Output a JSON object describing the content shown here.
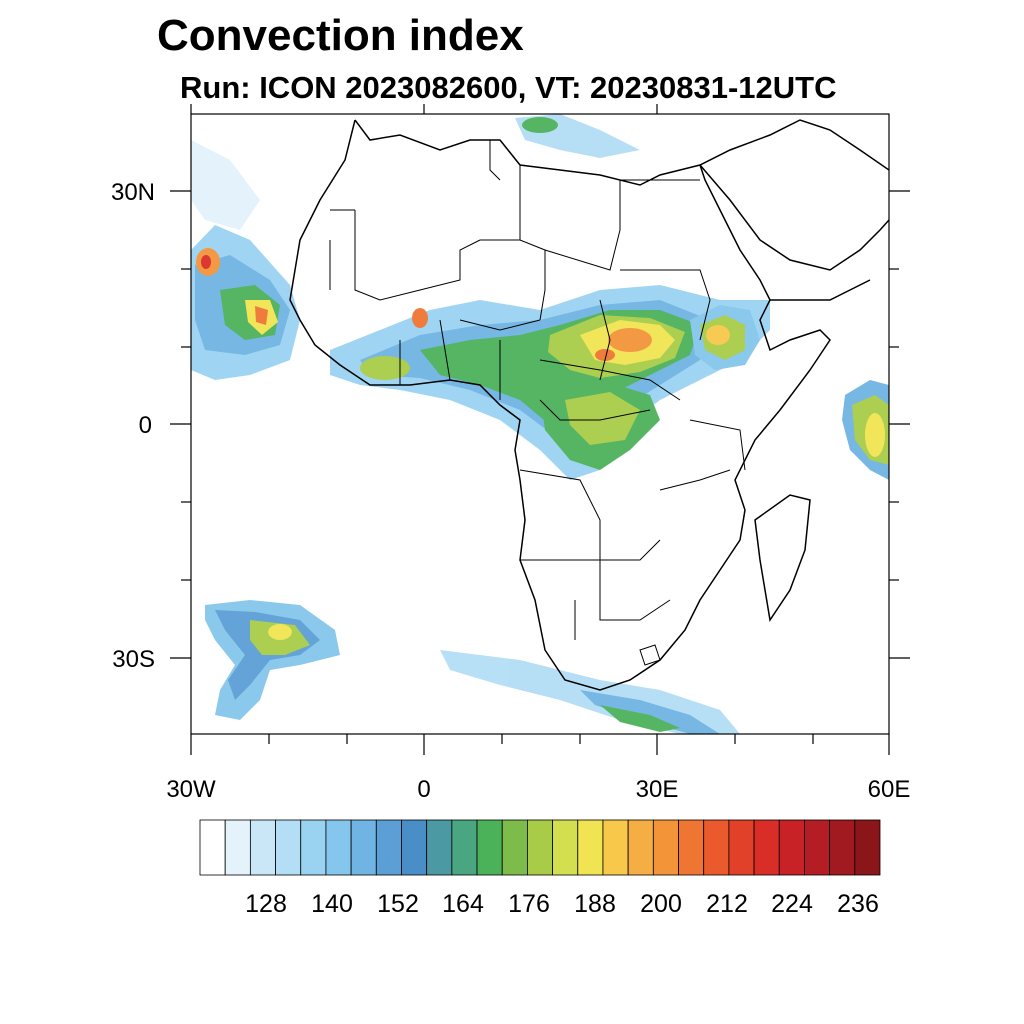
{
  "title": "Convection index",
  "subtitle": "Run: ICON 2023082600,  VT: 20230831-12UTC",
  "axes": {
    "lat_labels": [
      "30N",
      "0",
      "30S"
    ],
    "lon_labels": [
      "30W",
      "0",
      "30E",
      "60E"
    ]
  },
  "colorbar": {
    "labels": [
      "128",
      "140",
      "152",
      "164",
      "176",
      "188",
      "200",
      "212",
      "224",
      "236"
    ],
    "colors": [
      "#ffffff",
      "#e3f2fb",
      "#c9e7f7",
      "#b3def5",
      "#9ad3f2",
      "#84c6ec",
      "#6fb4e2",
      "#5b9fd6",
      "#4a8ec8",
      "#4b9aa3",
      "#4aa681",
      "#4cb25a",
      "#7dbc4a",
      "#a8cc48",
      "#d3df4e",
      "#f1e452",
      "#f7c84a",
      "#f5ae43",
      "#f39439",
      "#ef7532",
      "#ea5a2c",
      "#e24129",
      "#d92e27",
      "#c82226",
      "#b51d24",
      "#a01a20",
      "#8a1619"
    ]
  }
}
